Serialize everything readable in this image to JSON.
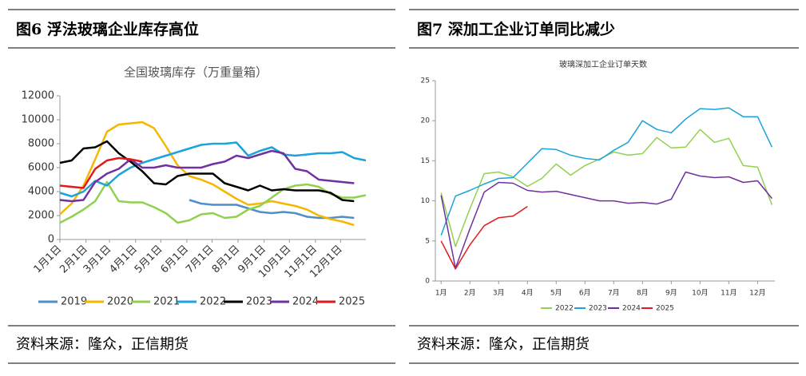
{
  "chart_data": [
    {
      "type": "line",
      "figure": "图6  浮法玻璃企业库存高位",
      "title": "全国玻璃库存（万重量箱）",
      "source": "资料来源：隆众，正信期货",
      "x": [
        1,
        15,
        29,
        43,
        57,
        71,
        85,
        99,
        113,
        127,
        141,
        155,
        169,
        183,
        197,
        211,
        225,
        239,
        253,
        267,
        281,
        295,
        309,
        323,
        337,
        351,
        365
      ],
      "xlim": [
        1,
        365
      ],
      "xticks": [
        {
          "value": 1,
          "label": "1月1日"
        },
        {
          "value": 32,
          "label": "2月1日"
        },
        {
          "value": 60,
          "label": "3月1日"
        },
        {
          "value": 91,
          "label": "4月1日"
        },
        {
          "value": 121,
          "label": "5月1日"
        },
        {
          "value": 152,
          "label": "6月1日"
        },
        {
          "value": 182,
          "label": "7月1日"
        },
        {
          "value": 213,
          "label": "8月1日"
        },
        {
          "value": 244,
          "label": "9月1日"
        },
        {
          "value": 274,
          "label": "10月1日"
        },
        {
          "value": 305,
          "label": "11月1日"
        },
        {
          "value": 335,
          "label": "12月1日"
        }
      ],
      "ylim": [
        0,
        12000
      ],
      "yticks": [
        0,
        2000,
        4000,
        6000,
        8000,
        10000,
        12000
      ],
      "grid": false,
      "legend": "bottom",
      "series": [
        {
          "name": "2019",
          "color": "#4e8fc9",
          "values": [
            null,
            null,
            null,
            null,
            null,
            null,
            null,
            null,
            null,
            null,
            null,
            3300,
            3000,
            2900,
            2900,
            2900,
            2600,
            2300,
            2200,
            2300,
            2200,
            1900,
            1800,
            1800,
            1900,
            1800,
            null
          ]
        },
        {
          "name": "2020",
          "color": "#f5b800",
          "values": [
            2100,
            3000,
            4500,
            6700,
            9000,
            9600,
            9700,
            9800,
            9300,
            7800,
            6200,
            5300,
            5000,
            4600,
            4000,
            3400,
            2900,
            3000,
            3200,
            3000,
            2800,
            2500,
            2000,
            1700,
            1500,
            1200,
            null
          ]
        },
        {
          "name": "2021",
          "color": "#92d050",
          "values": [
            1400,
            1900,
            2500,
            3200,
            4800,
            3200,
            3100,
            3100,
            2700,
            2200,
            1400,
            1600,
            2100,
            2200,
            1800,
            1900,
            2500,
            2800,
            3500,
            4200,
            4500,
            4600,
            4400,
            3800,
            3500,
            3500,
            3700
          ]
        },
        {
          "name": "2022",
          "color": "#1aa3dc",
          "values": [
            3900,
            3600,
            4000,
            4900,
            4500,
            5400,
            6000,
            6400,
            6700,
            7000,
            7300,
            7600,
            7900,
            8000,
            8000,
            8100,
            7000,
            7400,
            7700,
            7100,
            7000,
            7100,
            7200,
            7200,
            7300,
            6800,
            6600
          ]
        },
        {
          "name": "2023",
          "color": "#000000",
          "values": [
            6400,
            6600,
            7600,
            7700,
            8200,
            7200,
            6500,
            5700,
            4700,
            4600,
            5300,
            5500,
            5500,
            5500,
            4700,
            4400,
            4100,
            4500,
            4100,
            4200,
            4100,
            4100,
            4100,
            3900,
            3300,
            3200,
            null
          ]
        },
        {
          "name": "2024",
          "color": "#7030a0",
          "values": [
            3300,
            3200,
            3300,
            4800,
            5500,
            5900,
            6700,
            6000,
            6000,
            6200,
            6000,
            6000,
            6000,
            6300,
            6500,
            7000,
            6800,
            7100,
            7400,
            7200,
            5900,
            5700,
            5000,
            4900,
            4800,
            4700,
            null
          ]
        },
        {
          "name": "2025",
          "color": "#e31a1c",
          "values": [
            4500,
            4400,
            4300,
            5900,
            6600,
            6800,
            6700,
            6500,
            null,
            null,
            null,
            null,
            null,
            null,
            null,
            null,
            null,
            null,
            null,
            null,
            null,
            null,
            null,
            null,
            null,
            null,
            null
          ]
        }
      ]
    },
    {
      "type": "line",
      "figure": "图7    深加工企业订单同比减少",
      "title": "玻璃深加工企业订单天数",
      "source": "资料来源：隆众，正信期货",
      "x": [
        1,
        1.5,
        2,
        2.5,
        3,
        3.5,
        4,
        4.5,
        5,
        5.5,
        6,
        6.5,
        7,
        7.5,
        8,
        8.5,
        9,
        9.5,
        10,
        10.5,
        11,
        11.5,
        12,
        12.5
      ],
      "xlim": [
        0.8,
        12.6
      ],
      "xticks": [
        {
          "value": 1,
          "label": "1月"
        },
        {
          "value": 2,
          "label": "2月"
        },
        {
          "value": 3,
          "label": "3月"
        },
        {
          "value": 4,
          "label": "4月"
        },
        {
          "value": 5,
          "label": "5月"
        },
        {
          "value": 6,
          "label": "6月"
        },
        {
          "value": 7,
          "label": "7月"
        },
        {
          "value": 8,
          "label": "8月"
        },
        {
          "value": 9,
          "label": "9月"
        },
        {
          "value": 10,
          "label": "10月"
        },
        {
          "value": 11,
          "label": "11月"
        },
        {
          "value": 12,
          "label": "12月"
        }
      ],
      "ylim": [
        0,
        25
      ],
      "yticks": [
        0,
        5,
        10,
        15,
        20,
        25
      ],
      "grid": false,
      "legend": "bottom",
      "series": [
        {
          "name": "2022",
          "color": "#92d050",
          "values": [
            11,
            4.3,
            9,
            13.4,
            13.6,
            13,
            11.8,
            12.8,
            14.6,
            13.2,
            14.4,
            15.2,
            16.1,
            15.7,
            15.9,
            17.9,
            16.6,
            16.7,
            18.9,
            17.3,
            17.8,
            14.4,
            14.2,
            9.5
          ]
        },
        {
          "name": "2023",
          "color": "#1aa3dc",
          "values": [
            5.7,
            10.6,
            11.3,
            12.1,
            12.8,
            12.9,
            14.7,
            16.5,
            16.4,
            15.7,
            15.3,
            15.1,
            16.3,
            17.3,
            20,
            18.9,
            18.5,
            20.2,
            21.5,
            21.4,
            21.6,
            20.5,
            20.5,
            16.7
          ]
        },
        {
          "name": "2024",
          "color": "#7030a0",
          "values": [
            10.7,
            1.6,
            6.5,
            11.1,
            12.3,
            12.2,
            11.3,
            11.1,
            11.2,
            10.8,
            10.4,
            10,
            10,
            9.7,
            9.8,
            9.6,
            10.2,
            13.6,
            13.1,
            12.9,
            13,
            12.3,
            12.5,
            10.3
          ]
        },
        {
          "name": "2025",
          "color": "#e31a1c",
          "values": [
            5,
            1.5,
            4.5,
            6.9,
            7.9,
            8.1,
            9.3,
            null,
            null,
            null,
            null,
            null,
            null,
            null,
            null,
            null,
            null,
            null,
            null,
            null,
            null,
            null,
            null,
            null
          ]
        }
      ]
    }
  ]
}
